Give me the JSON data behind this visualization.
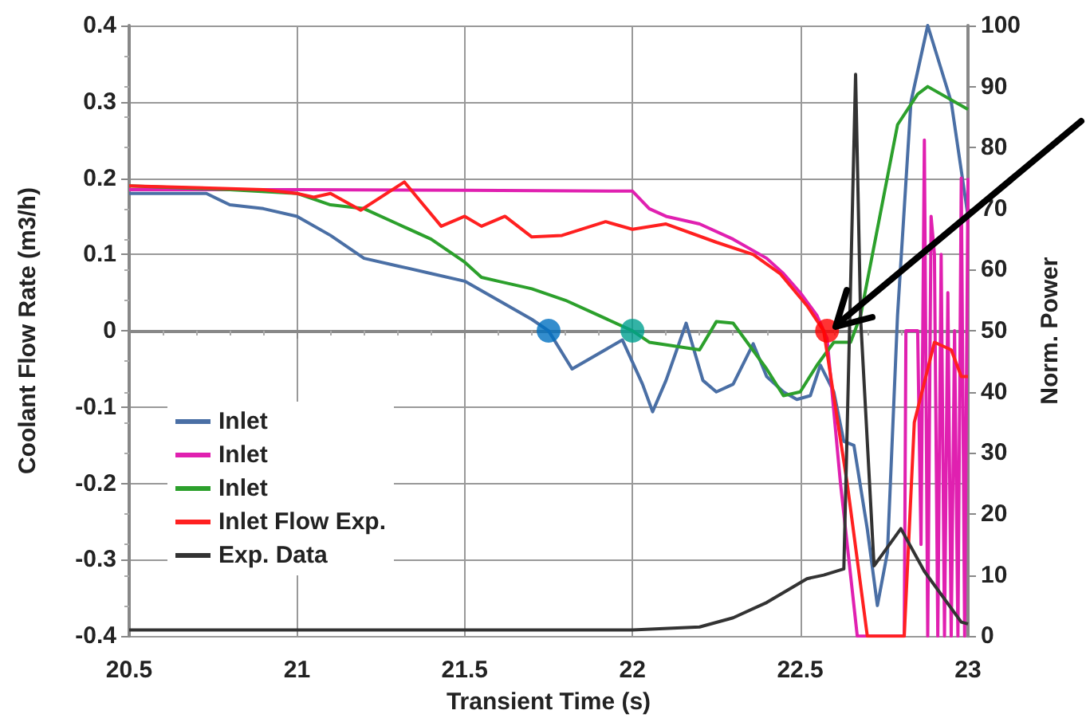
{
  "chart_data": {
    "type": "line",
    "xlabel": "Transient Time (s)",
    "ylabel": "Coolant Flow Rate (m3/h)",
    "y2label": "Norm. Power",
    "xlim": [
      20.5,
      23
    ],
    "xticks": [
      20.5,
      21,
      21.5,
      22,
      22.5,
      23
    ],
    "ylim": [
      -0.4,
      0.4
    ],
    "yticks": [
      -0.4,
      -0.3,
      -0.2,
      -0.1,
      0,
      0.1,
      0.2,
      0.3,
      0.4
    ],
    "y2lim": [
      0,
      100
    ],
    "y2ticks": [
      0,
      10,
      20,
      30,
      40,
      50,
      60,
      70,
      80,
      90,
      100
    ],
    "grid": true,
    "legend": "bottom left",
    "marker": "none",
    "line_style": "solid",
    "series": [
      {
        "name": "Inlet",
        "color": "#4a6fa5",
        "x": [
          20.5,
          20.73,
          20.8,
          20.9,
          21,
          21.1,
          21.2,
          21.3,
          21.4,
          21.5,
          21.6,
          21.7,
          21.75,
          21.82,
          21.97,
          22.03,
          22.06,
          22.1,
          22.16,
          22.21,
          22.25,
          22.3,
          22.36,
          22.4,
          22.45,
          22.49,
          22.53,
          22.56,
          22.6,
          22.63,
          22.66,
          22.7,
          22.73,
          22.76,
          22.79,
          22.83,
          22.88,
          22.95,
          23
        ],
        "values": [
          0.18,
          0.18,
          0.165,
          0.16,
          0.15,
          0.125,
          0.095,
          0.085,
          0.075,
          0.065,
          0.04,
          0.015,
          0,
          -0.05,
          -0.012,
          -0.07,
          -0.106,
          -0.065,
          0.01,
          -0.065,
          -0.08,
          -0.07,
          -0.017,
          -0.06,
          -0.08,
          -0.09,
          -0.085,
          -0.045,
          -0.08,
          -0.145,
          -0.15,
          -0.26,
          -0.36,
          -0.29,
          0.02,
          0.3,
          0.4,
          0.3,
          0.15
        ]
      },
      {
        "name": "Inlet",
        "color": "#e020b0",
        "x": [
          20.5,
          21,
          21.5,
          22,
          22.05,
          22.1,
          22.2,
          22.3,
          22.4,
          22.45,
          22.5,
          22.55,
          22.58,
          22.62,
          22.67,
          22.81,
          22.815,
          22.85,
          22.86,
          22.87,
          22.88,
          22.89,
          22.9,
          22.91,
          22.92,
          22.93,
          22.94,
          22.95,
          22.96,
          22.97,
          22.98,
          22.99,
          23
        ],
        "values": [
          0.185,
          0.185,
          0.184,
          0.183,
          0.16,
          0.15,
          0.14,
          0.12,
          0.095,
          0.075,
          0.05,
          0.02,
          -0.01,
          -0.2,
          -0.4,
          -0.4,
          0,
          0,
          -0.28,
          0.25,
          -0.4,
          0.15,
          0.1,
          -0.4,
          0.1,
          -0.4,
          0.05,
          -0.4,
          0,
          -0.4,
          0.2,
          -0.4,
          0.2
        ]
      },
      {
        "name": "Inlet",
        "color": "#2ca02c",
        "x": [
          20.5,
          20.8,
          21,
          21.1,
          21.2,
          21.3,
          21.4,
          21.5,
          21.55,
          21.6,
          21.65,
          21.7,
          21.8,
          21.9,
          22,
          22.05,
          22.2,
          22.25,
          22.3,
          22.4,
          22.45,
          22.5,
          22.55,
          22.6,
          22.65,
          22.68,
          22.79,
          22.85,
          22.88,
          23
        ],
        "values": [
          0.19,
          0.185,
          0.18,
          0.165,
          0.16,
          0.14,
          0.12,
          0.09,
          0.07,
          0.065,
          0.06,
          0.055,
          0.04,
          0.02,
          0,
          -0.015,
          -0.025,
          0.012,
          0.01,
          -0.05,
          -0.085,
          -0.08,
          -0.045,
          -0.015,
          -0.015,
          0.02,
          0.27,
          0.31,
          0.32,
          0.29
        ]
      },
      {
        "name": "Inlet Flow Exp.",
        "color": "#ff2020",
        "x": [
          20.5,
          20.9,
          21,
          21.05,
          21.1,
          21.19,
          21.32,
          21.43,
          21.5,
          21.55,
          21.62,
          21.7,
          21.79,
          21.92,
          22,
          22.1,
          22.25,
          22.36,
          22.44,
          22.52,
          22.57,
          22.64,
          22.7,
          22.81,
          22.84,
          22.9,
          22.95,
          22.98,
          23
        ],
        "values": [
          0.19,
          0.185,
          0.18,
          0.175,
          0.18,
          0.158,
          0.195,
          0.137,
          0.15,
          0.137,
          0.15,
          0.123,
          0.125,
          0.143,
          0.133,
          0.14,
          0.116,
          0.1,
          0.075,
          0.033,
          0,
          -0.2,
          -0.4,
          -0.4,
          -0.12,
          -0.015,
          -0.025,
          -0.06,
          -0.06
        ]
      },
      {
        "name": "Exp. Data",
        "color": "#333333",
        "axis": "y2",
        "x": [
          20.5,
          22,
          22.2,
          22.3,
          22.4,
          22.52,
          22.57,
          22.63,
          22.665,
          22.68,
          22.72,
          22.8,
          22.87,
          22.98,
          23
        ],
        "values": [
          1,
          1,
          1.5,
          3,
          5.5,
          9.4,
          10,
          11,
          92,
          52,
          11.5,
          17.6,
          10.6,
          2.3,
          2
        ]
      },
      {
        "type": "scatter",
        "x": [
          21.75,
          22,
          22.58
        ],
        "values": [
          0,
          0,
          0
        ],
        "colors": [
          "#0070c0",
          "#00a090",
          "#ff0000"
        ],
        "marker": "circle"
      }
    ]
  }
}
